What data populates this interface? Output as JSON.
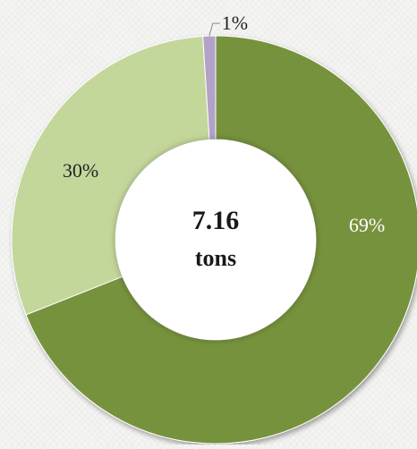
{
  "chart_data": {
    "type": "pie",
    "variant": "donut",
    "center_value": "7.16",
    "center_unit": "tons",
    "slices": [
      {
        "label": "69%",
        "value": 69,
        "color": "#77923c",
        "label_color": "#ffffff"
      },
      {
        "label": "30%",
        "value": 30,
        "color": "#c4d79b",
        "label_color": "#222222"
      },
      {
        "label": "1%",
        "value": 1,
        "color": "#b3a2c7",
        "label_color": "#222222"
      }
    ],
    "legend": "none"
  }
}
